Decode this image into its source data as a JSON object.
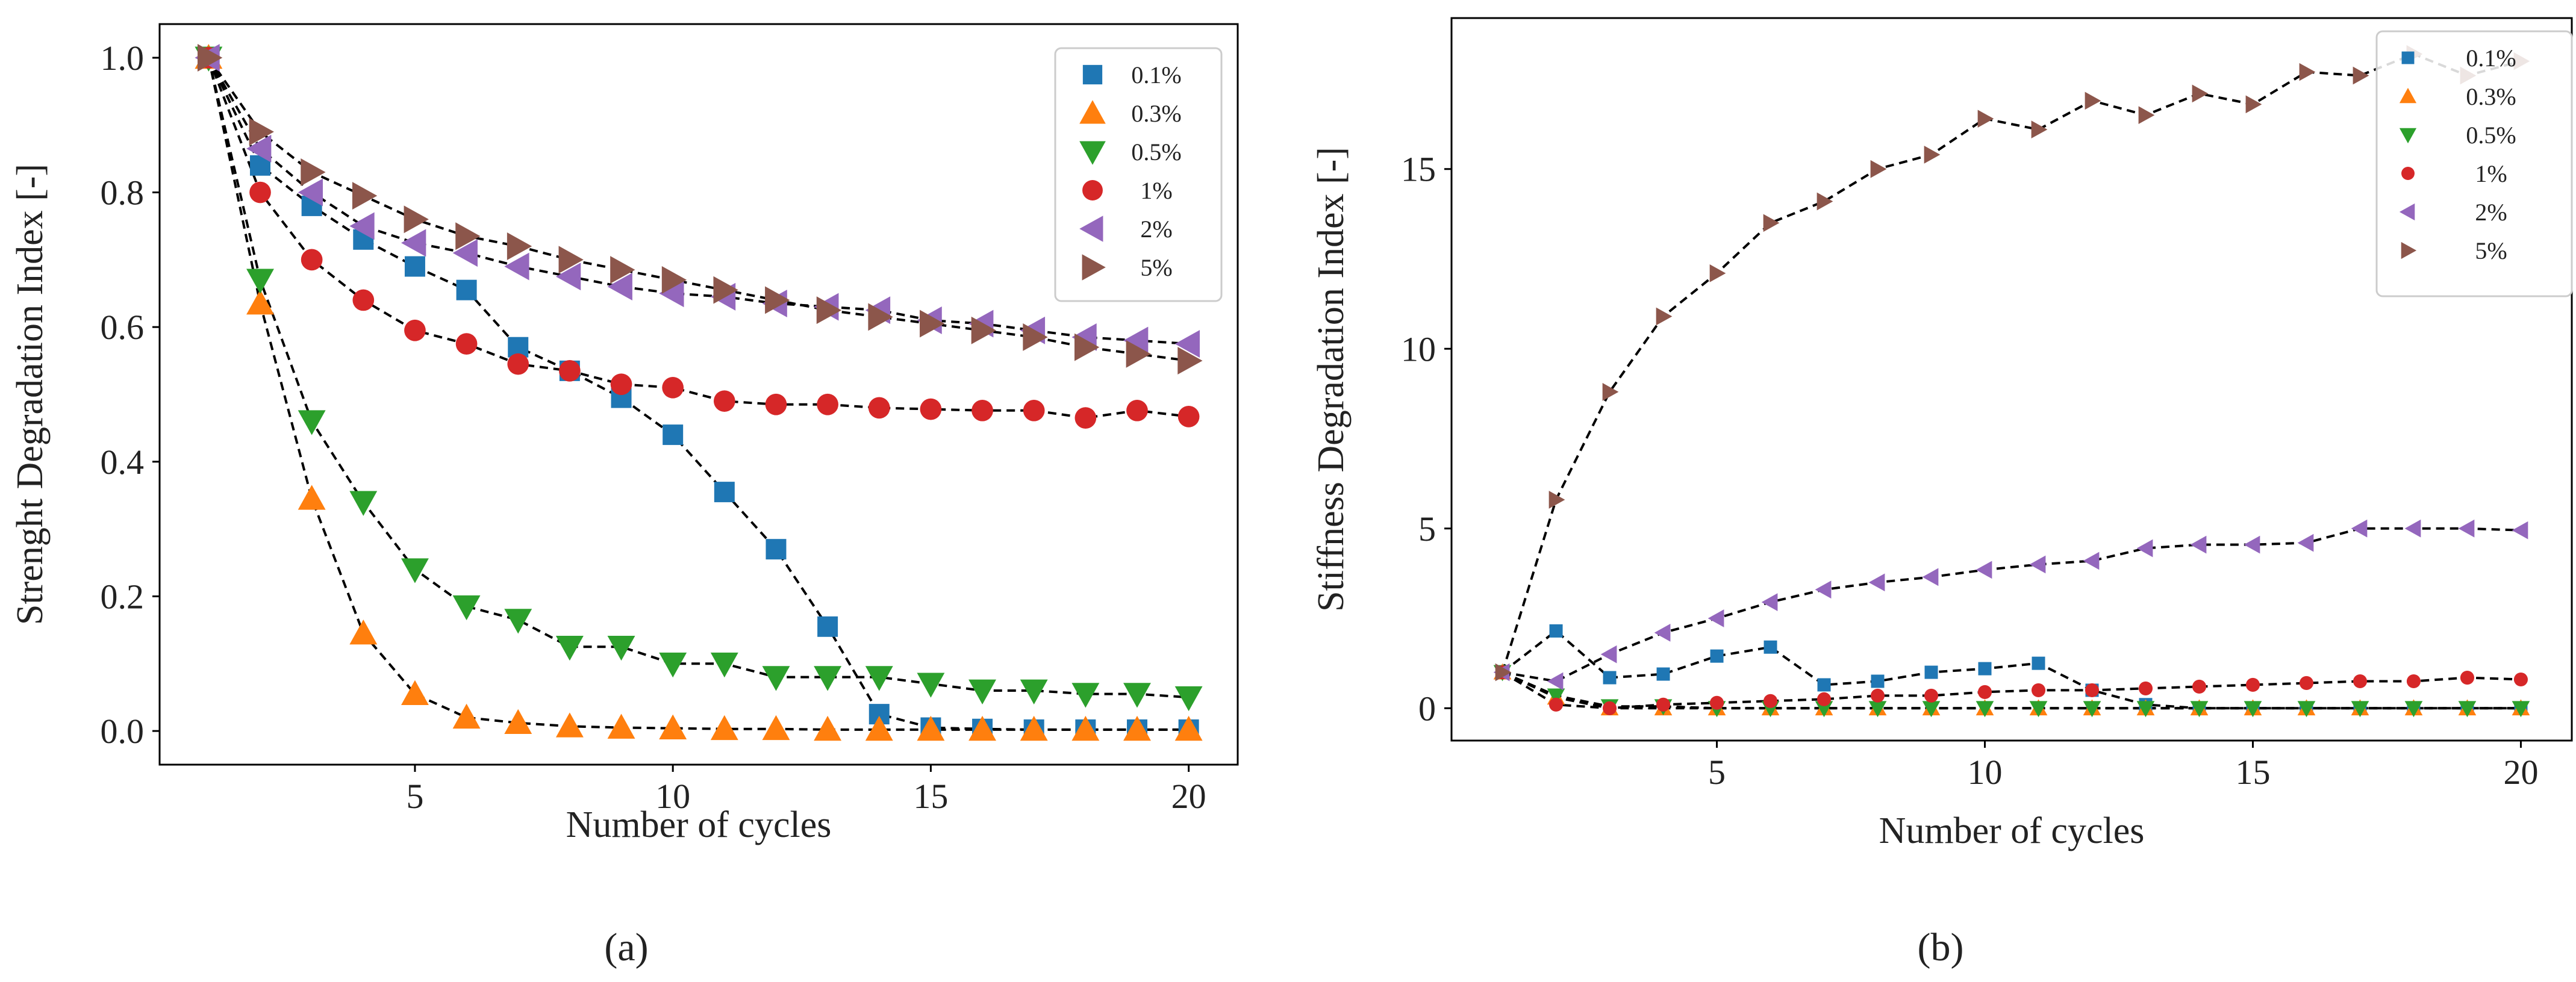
{
  "chart_data": [
    {
      "panel": "a",
      "type": "line",
      "xlabel": "Number of cycles",
      "ylabel": "Strenght Degradation Index [-]",
      "xlim": [
        0.05,
        20.95
      ],
      "ylim": [
        -0.05,
        1.05
      ],
      "xticks": [
        5,
        10,
        15,
        20
      ],
      "yticks": [
        0.0,
        0.2,
        0.4,
        0.6,
        0.8,
        1.0
      ],
      "ytick_labels": [
        "0.0",
        "0.2",
        "0.4",
        "0.6",
        "0.8",
        "1.0"
      ],
      "legend_placement": "top-right",
      "x": [
        1,
        2,
        3,
        4,
        5,
        6,
        7,
        8,
        9,
        10,
        11,
        12,
        13,
        14,
        15,
        16,
        17,
        18,
        19,
        20
      ],
      "series": [
        {
          "name": "0.1%",
          "marker": "square",
          "color": "#1f77b4",
          "values": [
            1.0,
            0.84,
            0.78,
            0.73,
            0.69,
            0.655,
            0.57,
            0.535,
            0.495,
            0.44,
            0.355,
            0.27,
            0.155,
            0.025,
            0.005,
            0.003,
            0.002,
            0.002,
            0.002,
            0.002
          ]
        },
        {
          "name": "0.3%",
          "marker": "triangle-up",
          "color": "#ff7f0e",
          "values": [
            1.0,
            0.635,
            0.345,
            0.145,
            0.055,
            0.02,
            0.012,
            0.007,
            0.005,
            0.004,
            0.003,
            0.003,
            0.002,
            0.002,
            0.002,
            0.002,
            0.002,
            0.002,
            0.002,
            0.002
          ]
        },
        {
          "name": "0.5%",
          "marker": "triangle-down",
          "color": "#2ca02c",
          "values": [
            1.0,
            0.67,
            0.46,
            0.34,
            0.24,
            0.185,
            0.165,
            0.125,
            0.125,
            0.1,
            0.1,
            0.08,
            0.08,
            0.08,
            0.07,
            0.06,
            0.06,
            0.055,
            0.055,
            0.05
          ]
        },
        {
          "name": "1%",
          "marker": "circle",
          "color": "#d62728",
          "values": [
            1.0,
            0.8,
            0.7,
            0.64,
            0.595,
            0.575,
            0.545,
            0.535,
            0.515,
            0.51,
            0.49,
            0.485,
            0.485,
            0.48,
            0.478,
            0.476,
            0.476,
            0.465,
            0.476,
            0.467
          ]
        },
        {
          "name": "2%",
          "marker": "triangle-left",
          "color": "#9467bd",
          "values": [
            1.0,
            0.865,
            0.8,
            0.75,
            0.725,
            0.71,
            0.69,
            0.675,
            0.66,
            0.65,
            0.645,
            0.635,
            0.63,
            0.625,
            0.61,
            0.605,
            0.595,
            0.585,
            0.58,
            0.575
          ]
        },
        {
          "name": "5%",
          "marker": "triangle-right",
          "color": "#8c564b",
          "values": [
            1.0,
            0.89,
            0.83,
            0.795,
            0.76,
            0.735,
            0.72,
            0.7,
            0.685,
            0.67,
            0.655,
            0.64,
            0.625,
            0.615,
            0.605,
            0.595,
            0.585,
            0.57,
            0.56,
            0.55
          ]
        }
      ]
    },
    {
      "panel": "b",
      "type": "line",
      "xlabel": "Number of cycles",
      "ylabel": "Stiffness Degradation Index [-]",
      "xlim": [
        0.05,
        20.95
      ],
      "ylim": [
        -0.9,
        19.2
      ],
      "xticks": [
        5,
        10,
        15,
        20
      ],
      "yticks": [
        0,
        5,
        10,
        15
      ],
      "ytick_labels": [
        "0",
        "5",
        "10",
        "15"
      ],
      "legend_placement": "top-right",
      "x": [
        1,
        2,
        3,
        4,
        5,
        6,
        7,
        8,
        9,
        10,
        11,
        12,
        13,
        14,
        15,
        16,
        17,
        18,
        19,
        20
      ],
      "series": [
        {
          "name": "0.1%",
          "marker": "square",
          "color": "#1f77b4",
          "values": [
            1.0,
            2.15,
            0.85,
            0.95,
            1.45,
            1.7,
            0.65,
            0.75,
            1.0,
            1.1,
            1.25,
            0.5,
            0.1,
            0.0,
            0.0,
            0.0,
            0.0,
            0.0,
            0.0,
            0.0
          ]
        },
        {
          "name": "0.3%",
          "marker": "triangle-up",
          "color": "#ff7f0e",
          "values": [
            1.0,
            0.3,
            0.0,
            0.0,
            0.0,
            0.0,
            0.0,
            0.0,
            0.0,
            0.0,
            0.0,
            0.0,
            0.0,
            0.0,
            0.0,
            0.0,
            0.0,
            0.0,
            0.0,
            0.0
          ]
        },
        {
          "name": "0.5%",
          "marker": "triangle-down",
          "color": "#2ca02c",
          "values": [
            1.0,
            0.35,
            0.05,
            0.05,
            0.0,
            0.0,
            0.0,
            0.0,
            0.0,
            0.0,
            0.0,
            0.0,
            0.0,
            0.0,
            0.0,
            0.0,
            0.0,
            0.0,
            0.0,
            0.0
          ]
        },
        {
          "name": "1%",
          "marker": "circle",
          "color": "#d62728",
          "values": [
            1.0,
            0.1,
            0.0,
            0.1,
            0.15,
            0.2,
            0.25,
            0.35,
            0.35,
            0.45,
            0.5,
            0.5,
            0.55,
            0.6,
            0.65,
            0.7,
            0.75,
            0.75,
            0.85,
            0.8
          ]
        },
        {
          "name": "2%",
          "marker": "triangle-left",
          "color": "#9467bd",
          "values": [
            1.0,
            0.75,
            1.5,
            2.1,
            2.5,
            2.95,
            3.3,
            3.5,
            3.65,
            3.85,
            4.0,
            4.1,
            4.45,
            4.55,
            4.55,
            4.6,
            5.0,
            5.0,
            5.0,
            4.95
          ]
        },
        {
          "name": "5%",
          "marker": "triangle-right",
          "color": "#8c564b",
          "values": [
            1.0,
            5.8,
            8.8,
            10.9,
            12.1,
            13.5,
            14.1,
            15.0,
            15.4,
            16.4,
            16.1,
            16.9,
            16.5,
            17.1,
            16.8,
            17.7,
            17.6,
            18.2,
            17.6,
            18.0
          ]
        }
      ]
    }
  ],
  "panel_labels": [
    "(a)",
    "(b)"
  ]
}
